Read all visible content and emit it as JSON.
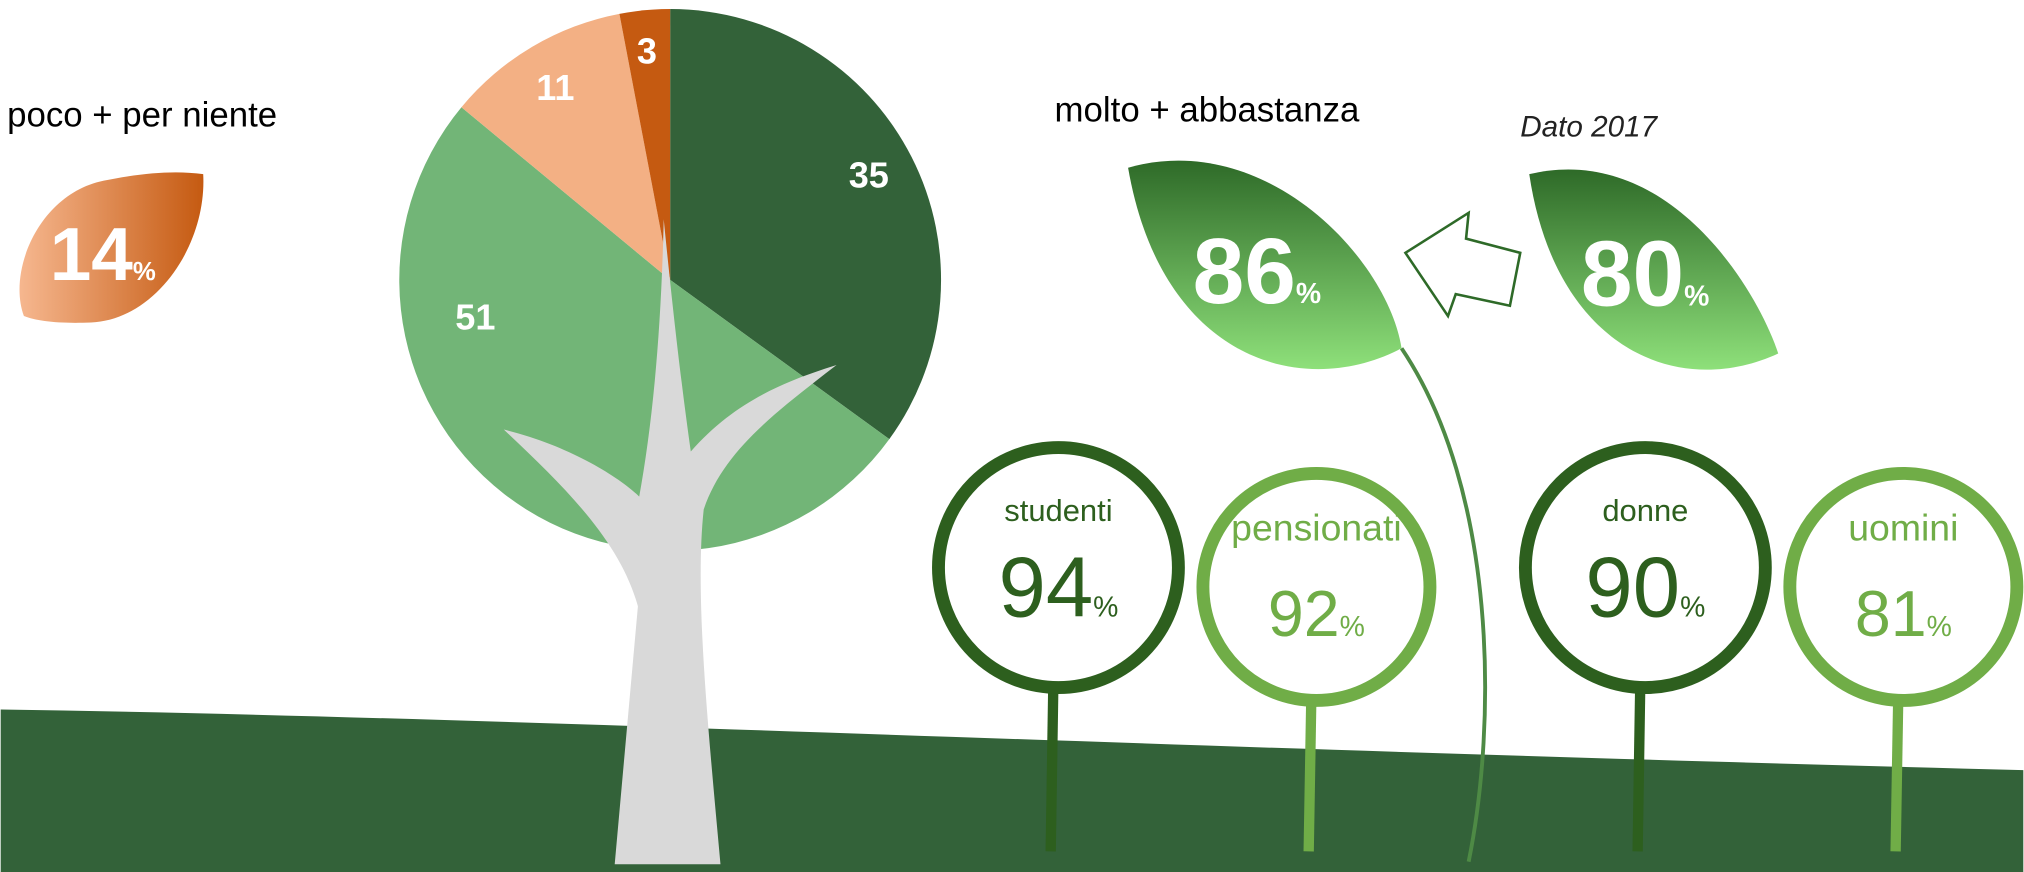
{
  "chart_data": {
    "type": "pie",
    "values": [
      35,
      51,
      11,
      3
    ],
    "colors": [
      "#336239",
      "#72b577",
      "#f3b084",
      "#c55a11"
    ]
  },
  "unit": "%",
  "left_leaf": {
    "label": "poco + per niente",
    "value": 14
  },
  "main_leaf": {
    "label": "molto + abbastanza",
    "value": 86
  },
  "previous_leaf": {
    "label": "Dato 2017",
    "value": 80
  },
  "signs": [
    {
      "label": "studenti",
      "value": 94
    },
    {
      "label": "pensionati",
      "value": 92
    },
    {
      "label": "donne",
      "value": 90
    },
    {
      "label": "uomini",
      "value": 81
    }
  ]
}
